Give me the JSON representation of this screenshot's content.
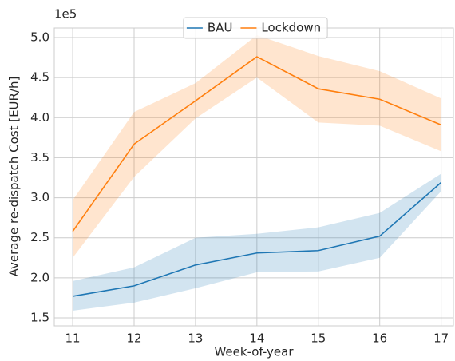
{
  "chart_data": {
    "type": "line",
    "x_label": "Week-of-year",
    "y_label": "Average re-dispatch Cost [EUR/h]",
    "y_offset_label": "1e5",
    "x": [
      11,
      12,
      13,
      14,
      15,
      16,
      17
    ],
    "series": [
      {
        "name": "BAU",
        "color": "#1f77b4",
        "values": [
          1.77,
          1.9,
          2.16,
          2.31,
          2.34,
          2.52,
          3.19
        ],
        "lower": [
          1.59,
          1.69,
          1.87,
          2.07,
          2.08,
          2.25,
          3.08
        ],
        "upper": [
          1.96,
          2.13,
          2.5,
          2.55,
          2.63,
          2.81,
          3.3
        ]
      },
      {
        "name": "Lockdown",
        "color": "#ff7f0e",
        "values": [
          2.58,
          3.67,
          4.21,
          4.76,
          4.36,
          4.23,
          3.91
        ],
        "lower": [
          2.25,
          3.26,
          3.99,
          4.5,
          3.94,
          3.9,
          3.58
        ],
        "upper": [
          2.97,
          4.07,
          4.43,
          5.03,
          4.77,
          4.58,
          4.24
        ]
      }
    ],
    "xlim": [
      10.7,
      17.2
    ],
    "xticks": [
      11,
      12,
      13,
      14,
      15,
      16,
      17
    ],
    "ylim": [
      1.4,
      5.12
    ],
    "yticks": [
      {
        "value": 1.5,
        "label": "1.5"
      },
      {
        "value": 2.0,
        "label": "2.0"
      },
      {
        "value": 2.5,
        "label": "2.5"
      },
      {
        "value": 3.0,
        "label": "3.0"
      },
      {
        "value": 3.5,
        "label": "3.5"
      },
      {
        "value": 4.0,
        "label": "4.0"
      },
      {
        "value": 4.5,
        "label": "4.5"
      },
      {
        "value": 5.0,
        "label": "5.0"
      }
    ],
    "grid": true,
    "legend": "top"
  }
}
